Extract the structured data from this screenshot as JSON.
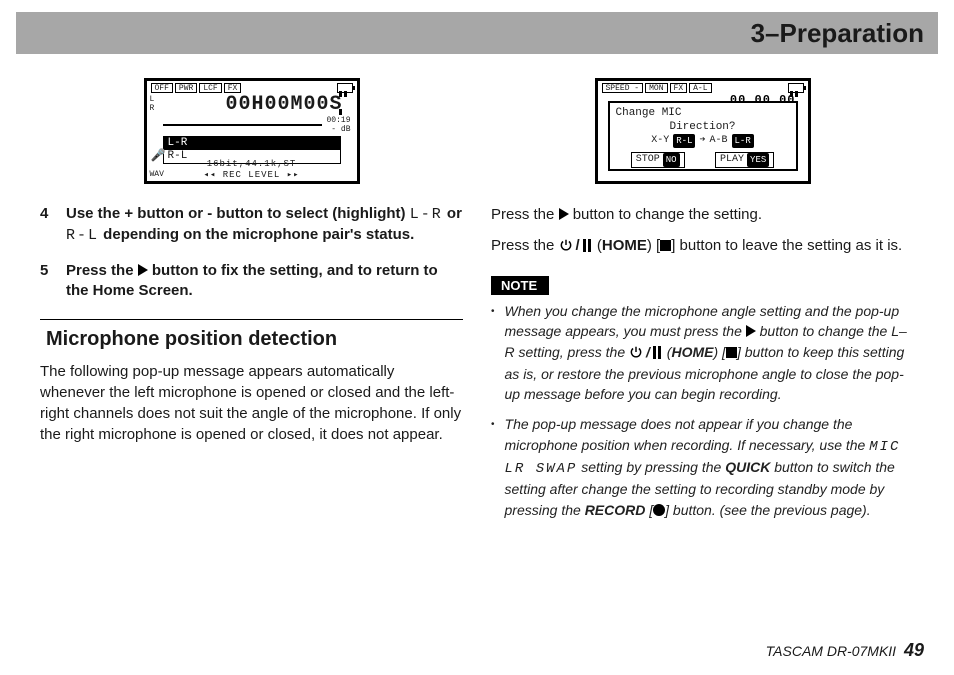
{
  "header": {
    "title": "3–Preparation"
  },
  "lcd_left": {
    "tabs": [
      "OFF",
      "PWR",
      "LCF",
      "FX"
    ],
    "time": "00H00M00S",
    "right_small_top": "00:19",
    "right_small_bot": "- dB",
    "left_labels": [
      "L",
      "R"
    ],
    "list": [
      {
        "label": "L-R",
        "selected": true
      },
      {
        "label": "R-L",
        "selected": false
      }
    ],
    "footer_top": "16bit,44.1k,ST",
    "footer_bot": "◂◂ REC LEVEL ▸▸",
    "wav": "WAV"
  },
  "lcd_right": {
    "tabs": [
      "SPEED -",
      "MON",
      "FX",
      "A-L"
    ],
    "shadow_time": "00 00 00",
    "popup": {
      "line1": "Change MIC",
      "line2": "Direction?",
      "row_left_label": "X-Y",
      "row_left_chip": "R-L",
      "row_right_label": "A-B",
      "row_right_chip": "L-R",
      "btn_left": "STOP",
      "btn_left_chip": "NO",
      "btn_right": "PLAY",
      "btn_right_chip": "YES"
    }
  },
  "steps": [
    {
      "num": "4",
      "parts": [
        {
          "t": "Use the + button or - button to select (highlight) "
        },
        {
          "t": "L-R",
          "mono": true
        },
        {
          "t": " or "
        },
        {
          "t": "R-L",
          "mono": true
        },
        {
          "t": " depending on the microphone pair's status."
        }
      ]
    },
    {
      "num": "5",
      "parts": [
        {
          "t": "Press the "
        },
        {
          "icon": "play"
        },
        {
          "t": " button to fix the setting, and to return to the Home Screen."
        }
      ]
    }
  ],
  "section_title": "Microphone position detection",
  "section_body": "The following pop-up message appears automatically whenever the left microphone is opened or closed and the left-right channels does not suit the angle of the microphone. If only the right microphone is opened or closed, it does not appear.",
  "right_body": [
    [
      {
        "t": "Press the "
      },
      {
        "icon": "play"
      },
      {
        "t": " button to change the setting."
      }
    ],
    [
      {
        "t": "Press the "
      },
      {
        "icon": "power"
      },
      {
        "t": "/",
        "cls": "slash"
      },
      {
        "icon": "pause"
      },
      {
        "t": " ("
      },
      {
        "t": "HOME",
        "b": true
      },
      {
        "t": ") ["
      },
      {
        "icon": "stop"
      },
      {
        "t": "] button to leave the setting as it is."
      }
    ]
  ],
  "note_label": "NOTE",
  "notes": [
    [
      {
        "t": "When you change the microphone angle setting and the pop-up message appears, you must press the "
      },
      {
        "icon": "play"
      },
      {
        "t": " button to change the L–R setting, press the "
      },
      {
        "icon": "power"
      },
      {
        "t": "/",
        "cls": "slash"
      },
      {
        "icon": "pause"
      },
      {
        "t": " ("
      },
      {
        "t": "HOME",
        "b": true
      },
      {
        "t": ") ["
      },
      {
        "icon": "stop"
      },
      {
        "t": "] button to keep this setting as is, or restore the previous microphone angle to close the pop-up message before you can begin recording."
      }
    ],
    [
      {
        "t": "The pop-up message does not appear if you change the microphone position when recording. If necessary, use the "
      },
      {
        "t": "MIC LR SWAP",
        "mono": true
      },
      {
        "t": " setting by pressing the "
      },
      {
        "t": "QUICK",
        "b": true
      },
      {
        "t": " button to switch the setting after change the setting to recording standby mode by pressing the "
      },
      {
        "t": "RECORD",
        "b": true
      },
      {
        "t": " ["
      },
      {
        "icon": "record"
      },
      {
        "t": "] button. (see the previous page)."
      }
    ]
  ],
  "footer": {
    "model": "TASCAM DR-07MKII",
    "page": "49"
  }
}
